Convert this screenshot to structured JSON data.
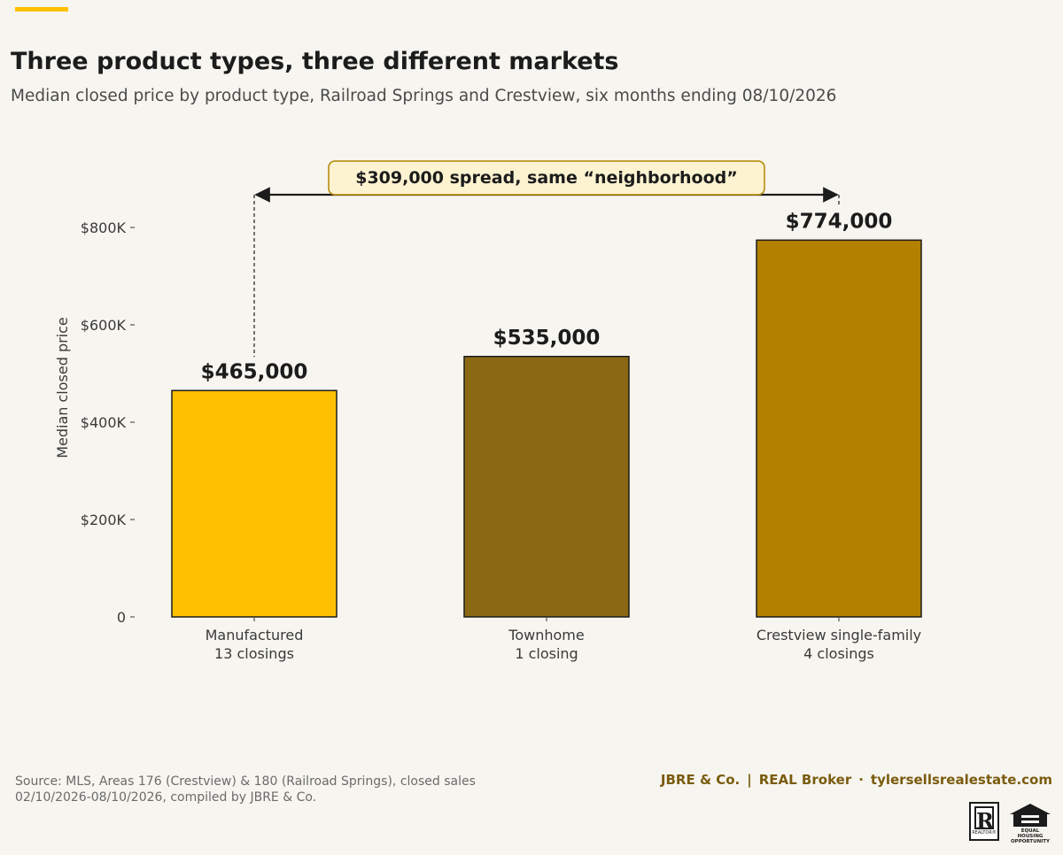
{
  "header": {
    "title": "Three product types, three different markets",
    "subtitle": "Median closed price by product type, Railroad Springs and Crestview, six months ending 08/10/2026"
  },
  "chart_data": {
    "type": "bar",
    "categories": [
      "Manufactured",
      "Townhome",
      "Crestview single-family"
    ],
    "category_sublabels": [
      "13 closings",
      "1 closing",
      "4 closings"
    ],
    "values": [
      465000,
      535000,
      774000
    ],
    "value_labels": [
      "$465,000",
      "$535,000",
      "$774,000"
    ],
    "colors": [
      "#ffc000",
      "#8b6914",
      "#b38000"
    ],
    "ylabel": "Median closed price",
    "ylim": [
      0,
      900000
    ],
    "yticks": [
      0,
      200000,
      400000,
      600000,
      800000
    ],
    "ytick_labels": [
      "0",
      "$200K",
      "$400K",
      "$600K",
      "$800K"
    ],
    "annotation": {
      "text": "$309,000 spread, same “neighborhood”",
      "from_category": 0,
      "to_category": 2
    },
    "grid": false,
    "legend": "none"
  },
  "footer": {
    "source_line1": "Source: MLS, Areas 176 (Crestview) & 180 (Railroad Springs), closed sales",
    "source_line2": "02/10/2026-08/10/2026, compiled by JBRE & Co.",
    "brand_name": "JBRE & Co.",
    "brokerage": "REAL Broker",
    "website": "tylersellsrealestate.com",
    "brand_color": "#7a5c0f",
    "realtor_mark": "R",
    "realtor_text": "REALTOR®",
    "eho_text_1": "EQUAL HOUSING",
    "eho_text_2": "OPPORTUNITY"
  }
}
